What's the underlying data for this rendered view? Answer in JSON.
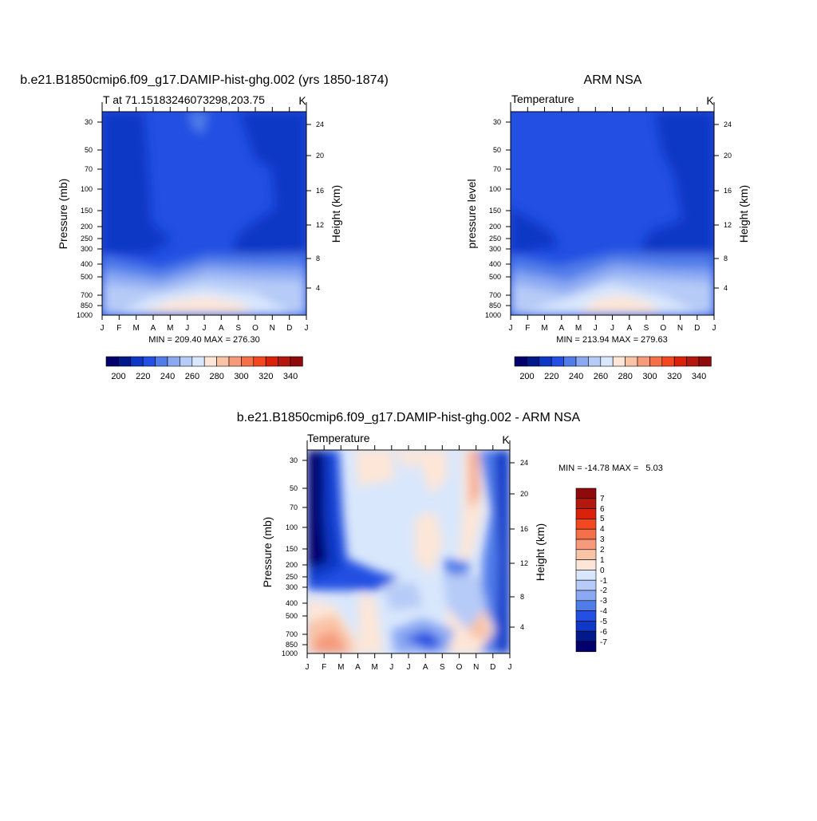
{
  "chart_data": [
    {
      "type": "heatmap",
      "title": "b.e21.B1850cmip6.f09_g17.DAMIP-hist-ghg.002 (yrs 1850-1874)",
      "subtitle_left": "T at 71.15183246073298,203.75",
      "units": "K",
      "ylabel": "Pressure (mb)",
      "ylabel_right": "Height (km)",
      "x_ticks": [
        "J",
        "F",
        "M",
        "A",
        "M",
        "J",
        "J",
        "A",
        "S",
        "O",
        "N",
        "D",
        "J"
      ],
      "y_ticks": [
        30,
        50,
        70,
        100,
        150,
        200,
        250,
        300,
        400,
        500,
        700,
        850,
        1000
      ],
      "height_ticks": [
        24,
        20,
        16,
        12,
        8,
        4
      ],
      "stats": "MIN = 209.40 MAX = 276.30",
      "min": 209.4,
      "max": 276.3,
      "colorbar_ticks": [
        200,
        220,
        240,
        260,
        280,
        300,
        320,
        340
      ]
    },
    {
      "type": "heatmap",
      "title": "ARM NSA",
      "subtitle_left": "Temperature",
      "units": "K",
      "ylabel": "pressure level",
      "ylabel_right": "Height (km)",
      "x_ticks": [
        "J",
        "F",
        "M",
        "A",
        "M",
        "J",
        "J",
        "A",
        "S",
        "O",
        "N",
        "D",
        "J"
      ],
      "y_ticks": [
        30,
        50,
        70,
        100,
        150,
        200,
        250,
        300,
        400,
        500,
        700,
        850,
        1000
      ],
      "height_ticks": [
        24,
        20,
        16,
        12,
        8,
        4
      ],
      "stats": "MIN = 213.94 MAX = 279.63",
      "min": 213.94,
      "max": 279.63,
      "colorbar_ticks": [
        200,
        220,
        240,
        260,
        280,
        300,
        320,
        340
      ]
    },
    {
      "type": "heatmap",
      "title": "b.e21.B1850cmip6.f09_g17.DAMIP-hist-ghg.002 - ARM NSA",
      "subtitle_left": "Temperature",
      "units": "K",
      "ylabel": "Pressure (mb)",
      "ylabel_right": "Height (km)",
      "x_ticks": [
        "J",
        "F",
        "M",
        "A",
        "M",
        "J",
        "J",
        "A",
        "S",
        "O",
        "N",
        "D",
        "J"
      ],
      "y_ticks": [
        30,
        50,
        70,
        100,
        150,
        200,
        250,
        300,
        400,
        500,
        700,
        850,
        1000
      ],
      "height_ticks": [
        24,
        20,
        16,
        12,
        8,
        4
      ],
      "stats": "MIN = -14.78 MAX =   5.03",
      "min": -14.78,
      "max": 5.03,
      "colorbar_ticks": [
        7,
        6,
        5,
        4,
        3,
        2,
        1,
        0,
        -1,
        -2,
        -3,
        -4,
        -5,
        -6,
        -7
      ]
    }
  ],
  "colors": {
    "abs_scale": [
      "#03006d",
      "#02198b",
      "#0e37c6",
      "#234fe2",
      "#4f7ce9",
      "#8ba9f3",
      "#b6cbf7",
      "#d9e7fc",
      "#fde6d7",
      "#f9c3a6",
      "#f69a7b",
      "#f56f48",
      "#f2471f",
      "#d9210c",
      "#b4170e",
      "#8e0a0b"
    ],
    "diff_scale": [
      "#8e0a0b",
      "#b4170e",
      "#d9210c",
      "#f2471f",
      "#f56f48",
      "#f69a7b",
      "#f9c3a6",
      "#fde6d7",
      "#d9e7fc",
      "#b6cbf7",
      "#8ba9f3",
      "#4f7ce9",
      "#234fe2",
      "#0e37c6",
      "#02198b",
      "#03006d"
    ]
  }
}
